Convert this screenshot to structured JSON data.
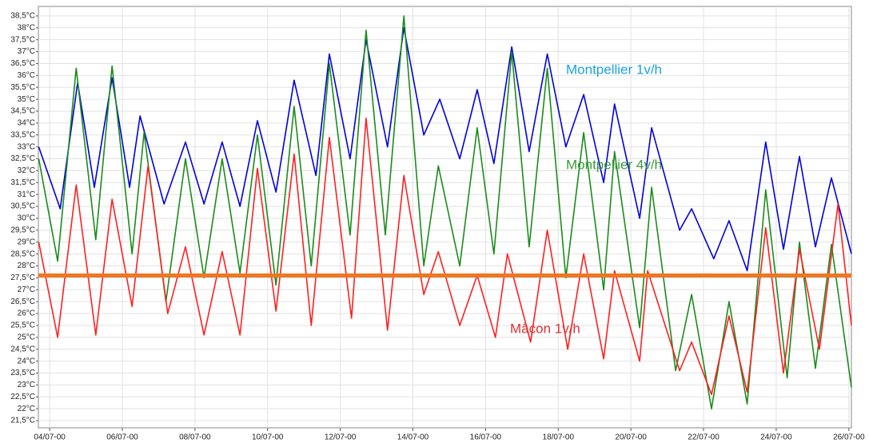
{
  "chart_data": {
    "type": "line",
    "xlim": [
      3.69,
      26.07
    ],
    "ylim": [
      21.2,
      38.9
    ],
    "xticks": [
      {
        "value": 4,
        "label": "04/07-00"
      },
      {
        "value": 6,
        "label": "06/07-00"
      },
      {
        "value": 8,
        "label": "08/07-00"
      },
      {
        "value": 10,
        "label": "10/07-00"
      },
      {
        "value": 12,
        "label": "12/07-00"
      },
      {
        "value": 14,
        "label": "14/07-00"
      },
      {
        "value": 16,
        "label": "16/07-00"
      },
      {
        "value": 18,
        "label": "18/07-00"
      },
      {
        "value": 20,
        "label": "20/07-00"
      },
      {
        "value": 22,
        "label": "22/07-00"
      },
      {
        "value": 24,
        "label": "24/07-00"
      },
      {
        "value": 26,
        "label": "26/07-00"
      }
    ],
    "yticks": [
      {
        "value": 21.5,
        "label": "21,5°C"
      },
      {
        "value": 22,
        "label": "22°C"
      },
      {
        "value": 22.5,
        "label": "22,5°C"
      },
      {
        "value": 23,
        "label": "23°C"
      },
      {
        "value": 23.5,
        "label": "23,5°C"
      },
      {
        "value": 24,
        "label": "24°C"
      },
      {
        "value": 24.5,
        "label": "24,5°C"
      },
      {
        "value": 25,
        "label": "25°C"
      },
      {
        "value": 25.5,
        "label": "25,5°C"
      },
      {
        "value": 26,
        "label": "26°C"
      },
      {
        "value": 26.5,
        "label": "26,5°C"
      },
      {
        "value": 27,
        "label": "27°C"
      },
      {
        "value": 27.5,
        "label": "27,5°C"
      },
      {
        "value": 28,
        "label": "28°C"
      },
      {
        "value": 28.5,
        "label": "28,5°C"
      },
      {
        "value": 29,
        "label": "29°C"
      },
      {
        "value": 29.5,
        "label": "29,5°C"
      },
      {
        "value": 30,
        "label": "30°C"
      },
      {
        "value": 30.5,
        "label": "30,5°C"
      },
      {
        "value": 31,
        "label": "31°C"
      },
      {
        "value": 31.5,
        "label": "31,5°C"
      },
      {
        "value": 32,
        "label": "32°C"
      },
      {
        "value": 32.5,
        "label": "32,5°C"
      },
      {
        "value": 33,
        "label": "33°C"
      },
      {
        "value": 33.5,
        "label": "33,5°C"
      },
      {
        "value": 34,
        "label": "34°C"
      },
      {
        "value": 34.5,
        "label": "34,5°C"
      },
      {
        "value": 35,
        "label": "35°C"
      },
      {
        "value": 35.5,
        "label": "35,5°C"
      },
      {
        "value": 36,
        "label": "36°C"
      },
      {
        "value": 36.5,
        "label": "36,5°C"
      },
      {
        "value": 37,
        "label": "37°C"
      },
      {
        "value": 37.5,
        "label": "37,5°C"
      },
      {
        "value": 38,
        "label": "38°C"
      },
      {
        "value": 38.5,
        "label": "38,5°C"
      }
    ],
    "grid": true,
    "series": [
      {
        "name": "Montpellier 1v/h",
        "color": "#0000dd",
        "label_color": "#1aa3dd",
        "x": [
          3.7,
          4.29,
          4.77,
          5.23,
          5.72,
          6.2,
          6.49,
          7.15,
          7.74,
          8.25,
          8.75,
          9.24,
          9.72,
          10.23,
          10.73,
          11.33,
          11.7,
          12.27,
          12.71,
          13.3,
          13.75,
          14.3,
          14.74,
          15.29,
          15.77,
          16.23,
          16.72,
          17.2,
          17.7,
          18.21,
          18.7,
          19.25,
          19.55,
          20.24,
          20.57,
          21.34,
          21.67,
          22.28,
          22.7,
          23.2,
          23.71,
          24.2,
          24.64,
          25.08,
          25.52,
          26.07
        ],
        "values": [
          33.0,
          30.4,
          35.7,
          31.3,
          35.9,
          31.3,
          34.3,
          30.6,
          33.2,
          30.6,
          33.2,
          30.5,
          34.1,
          31.1,
          35.8,
          31.8,
          36.9,
          32.5,
          37.5,
          33.0,
          38.0,
          33.5,
          35.0,
          32.5,
          35.4,
          32.3,
          37.2,
          32.8,
          36.9,
          33.0,
          35.2,
          31.5,
          34.8,
          30.0,
          33.8,
          29.5,
          30.4,
          28.3,
          29.9,
          27.8,
          33.2,
          28.7,
          32.6,
          28.8,
          31.7,
          28.5
        ]
      },
      {
        "name": "Montpellier 4v/h",
        "color": "#1a8c1a",
        "label_color": "#3a9a3a",
        "x": [
          3.7,
          4.22,
          4.73,
          5.27,
          5.72,
          6.27,
          6.6,
          7.2,
          7.74,
          8.25,
          8.75,
          9.24,
          9.72,
          10.23,
          10.73,
          11.2,
          11.7,
          12.27,
          12.71,
          13.24,
          13.75,
          14.3,
          14.7,
          15.29,
          15.77,
          16.23,
          16.72,
          17.2,
          17.7,
          18.21,
          18.7,
          19.25,
          19.55,
          20.24,
          20.57,
          21.23,
          21.67,
          22.22,
          22.7,
          23.2,
          23.71,
          24.3,
          24.64,
          25.08,
          25.52,
          26.07
        ],
        "values": [
          32.5,
          28.2,
          36.3,
          29.1,
          36.4,
          28.5,
          33.6,
          26.5,
          32.5,
          27.5,
          32.5,
          27.7,
          33.5,
          27.2,
          34.7,
          28.0,
          36.5,
          29.3,
          37.9,
          29.3,
          38.5,
          28.0,
          32.2,
          28.0,
          33.8,
          28.5,
          37.0,
          28.8,
          36.3,
          27.5,
          33.6,
          27.0,
          32.8,
          25.4,
          31.3,
          23.6,
          26.8,
          22.0,
          26.5,
          22.2,
          31.2,
          23.3,
          29.0,
          23.7,
          28.9,
          22.9
        ]
      },
      {
        "name": "Mâcon 1v/h",
        "color": "#ff2020",
        "label_color": "#e03030",
        "x": [
          3.7,
          4.22,
          4.73,
          5.27,
          5.72,
          6.27,
          6.71,
          7.25,
          7.74,
          8.25,
          8.75,
          9.24,
          9.72,
          10.23,
          10.73,
          11.2,
          11.7,
          12.31,
          12.71,
          13.3,
          13.75,
          14.3,
          14.7,
          15.29,
          15.77,
          16.27,
          16.6,
          17.24,
          17.7,
          18.26,
          18.7,
          19.25,
          19.55,
          20.24,
          20.46,
          21.34,
          21.67,
          22.22,
          22.7,
          23.2,
          23.71,
          24.2,
          24.64,
          25.19,
          25.7,
          26.07
        ],
        "values": [
          29.0,
          25.0,
          31.4,
          25.1,
          30.8,
          26.3,
          32.2,
          26.0,
          28.8,
          25.1,
          28.6,
          25.1,
          32.1,
          26.1,
          32.7,
          25.5,
          33.4,
          25.8,
          34.2,
          25.3,
          31.8,
          26.8,
          28.6,
          25.5,
          27.6,
          25.0,
          28.5,
          24.8,
          29.5,
          24.5,
          28.5,
          24.1,
          27.8,
          24.0,
          27.8,
          23.6,
          24.8,
          22.6,
          25.9,
          22.7,
          29.6,
          23.5,
          28.7,
          24.5,
          30.6,
          25.5
        ]
      }
    ],
    "reference_line": {
      "value": 27.6,
      "color": "#ee7722"
    }
  }
}
